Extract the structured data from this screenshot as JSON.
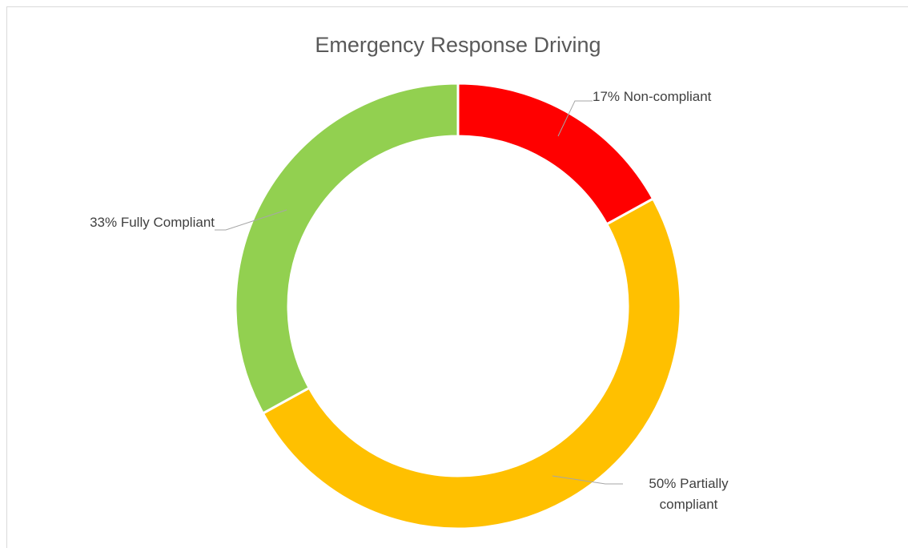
{
  "chart_data": {
    "type": "donut",
    "title": "Emergency Response Driving",
    "categories": [
      "Non-compliant",
      "Partially compliant",
      "Fully Compliant"
    ],
    "values": [
      17,
      50,
      33
    ],
    "value_labels": [
      "17%",
      "50%",
      "33%"
    ],
    "colors": [
      "#ff0000",
      "#ffc000",
      "#92d050"
    ]
  }
}
